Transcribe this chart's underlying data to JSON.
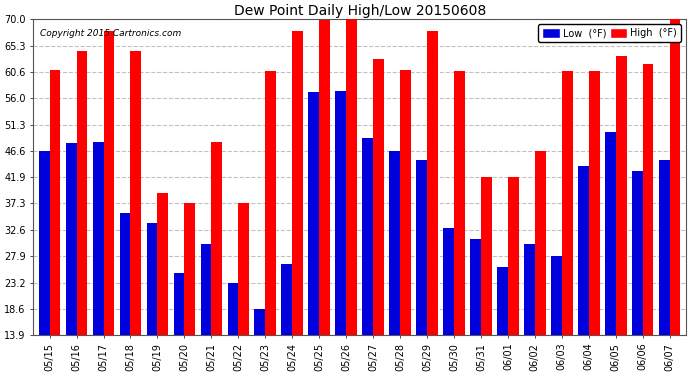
{
  "title": "Dew Point Daily High/Low 20150608",
  "copyright": "Copyright 2015 Cartronics.com",
  "legend_low_label": "Low  (°F)",
  "legend_high_label": "High  (°F)",
  "low_color": "#0000dd",
  "high_color": "#ff0000",
  "background_color": "#ffffff",
  "grid_color": "#bbbbbb",
  "dates": [
    "05/15",
    "05/16",
    "05/17",
    "05/18",
    "05/19",
    "05/20",
    "05/21",
    "05/22",
    "05/23",
    "05/24",
    "05/25",
    "05/26",
    "05/27",
    "05/28",
    "05/29",
    "05/30",
    "05/31",
    "06/01",
    "06/02",
    "06/03",
    "06/04",
    "06/05",
    "06/06",
    "06/07"
  ],
  "low": [
    46.6,
    48.0,
    48.2,
    35.6,
    33.8,
    25.0,
    30.0,
    23.2,
    18.6,
    26.6,
    57.0,
    57.2,
    49.0,
    46.6,
    45.0,
    33.0,
    31.0,
    26.0,
    30.0,
    28.0,
    44.0,
    50.0,
    43.0,
    45.0
  ],
  "high": [
    61.0,
    64.4,
    68.0,
    64.4,
    39.2,
    37.4,
    48.2,
    37.4,
    60.8,
    68.0,
    69.8,
    71.6,
    63.0,
    61.0,
    68.0,
    60.8,
    41.9,
    41.9,
    46.6,
    60.8,
    60.8,
    63.5,
    62.0,
    70.0
  ],
  "ylim_min": 13.9,
  "ylim_max": 70.0,
  "yticks": [
    13.9,
    18.6,
    23.2,
    27.9,
    32.6,
    37.3,
    41.9,
    46.6,
    51.3,
    56.0,
    60.6,
    65.3,
    70.0
  ],
  "bar_bottom": 13.9,
  "figwidth": 6.9,
  "figheight": 3.75,
  "dpi": 100
}
